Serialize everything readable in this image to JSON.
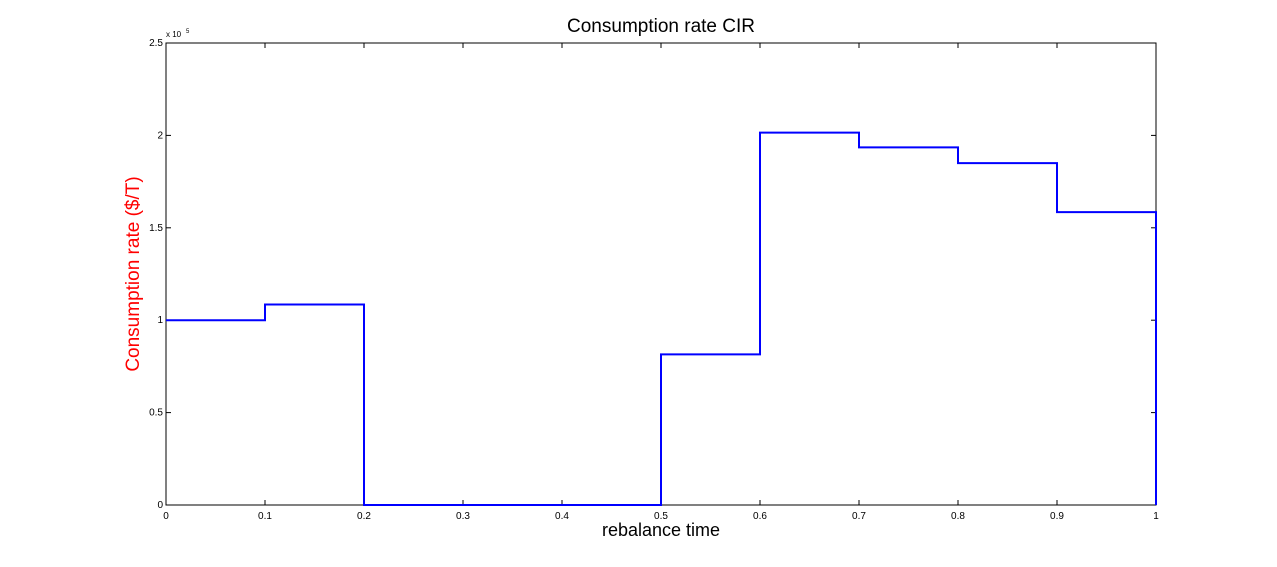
{
  "chart_data": {
    "type": "line",
    "title": "Consumption rate CIR",
    "xlabel": "rebalance time",
    "ylabel": "Consumption rate ($/T)",
    "ylabel_color": "#ff0000",
    "line_color": "#0000ff",
    "x_ticks": [
      "0",
      "0.1",
      "0.2",
      "0.3",
      "0.4",
      "0.5",
      "0.6",
      "0.7",
      "0.8",
      "0.9",
      "1"
    ],
    "y_ticks": [
      "0",
      "0.5",
      "1",
      "1.5",
      "2",
      "2.5"
    ],
    "y_exponent_base": "x 10",
    "y_exponent_power": "5",
    "xlim": [
      0,
      1
    ],
    "ylim": [
      0,
      250000
    ],
    "grid": false,
    "series": [
      {
        "step": "post",
        "x": [
          0,
          0.1,
          0.2,
          0.3,
          0.4,
          0.5,
          0.6,
          0.7,
          0.8,
          0.9,
          1
        ],
        "values": [
          100000,
          108500,
          0,
          0,
          0,
          81500,
          201500,
          193500,
          185000,
          158500,
          0
        ]
      }
    ]
  }
}
